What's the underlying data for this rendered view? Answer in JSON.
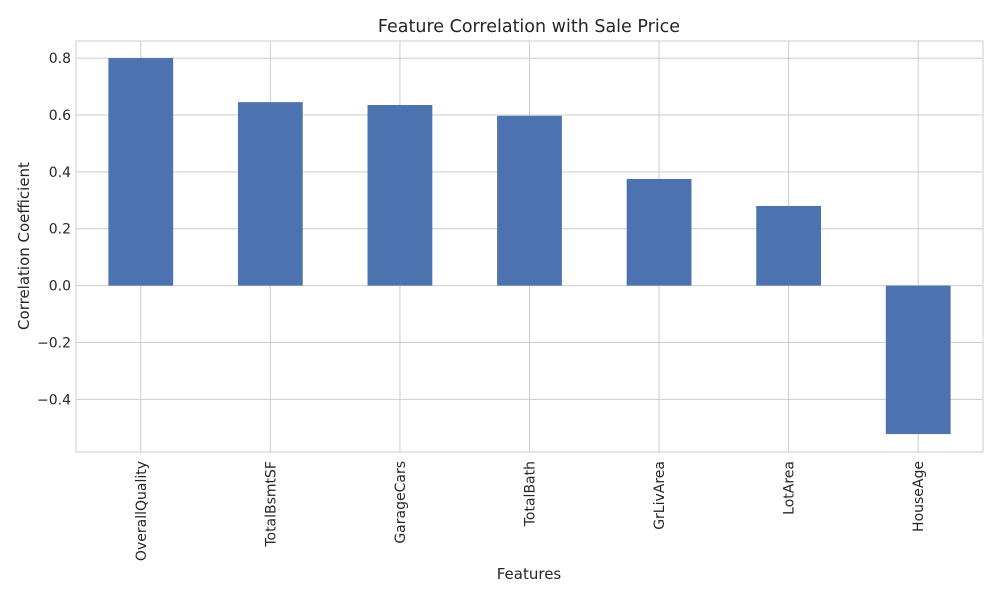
{
  "chart_data": {
    "type": "bar",
    "title": "Feature Correlation with Sale Price",
    "xlabel": "Features",
    "ylabel": "Correlation Coefficient",
    "categories": [
      "OverallQuality",
      "TotalBsmtSF",
      "GarageCars",
      "TotalBath",
      "GrLivArea",
      "LotArea",
      "HouseAge"
    ],
    "values": [
      0.8,
      0.645,
      0.635,
      0.597,
      0.375,
      0.28,
      -0.522
    ],
    "ylim": [
      -0.585,
      0.86
    ],
    "yticks": [
      -0.4,
      -0.2,
      0.0,
      0.2,
      0.4,
      0.6,
      0.8
    ],
    "ytick_labels": [
      "−0.4",
      "−0.2",
      "0.0",
      "0.2",
      "0.4",
      "0.6",
      "0.8"
    ],
    "grid": true,
    "legend": "none",
    "colors": {
      "bar": "#4c72b0",
      "grid": "#cccccc",
      "frame": "#cccccc",
      "text": "#262626"
    }
  }
}
